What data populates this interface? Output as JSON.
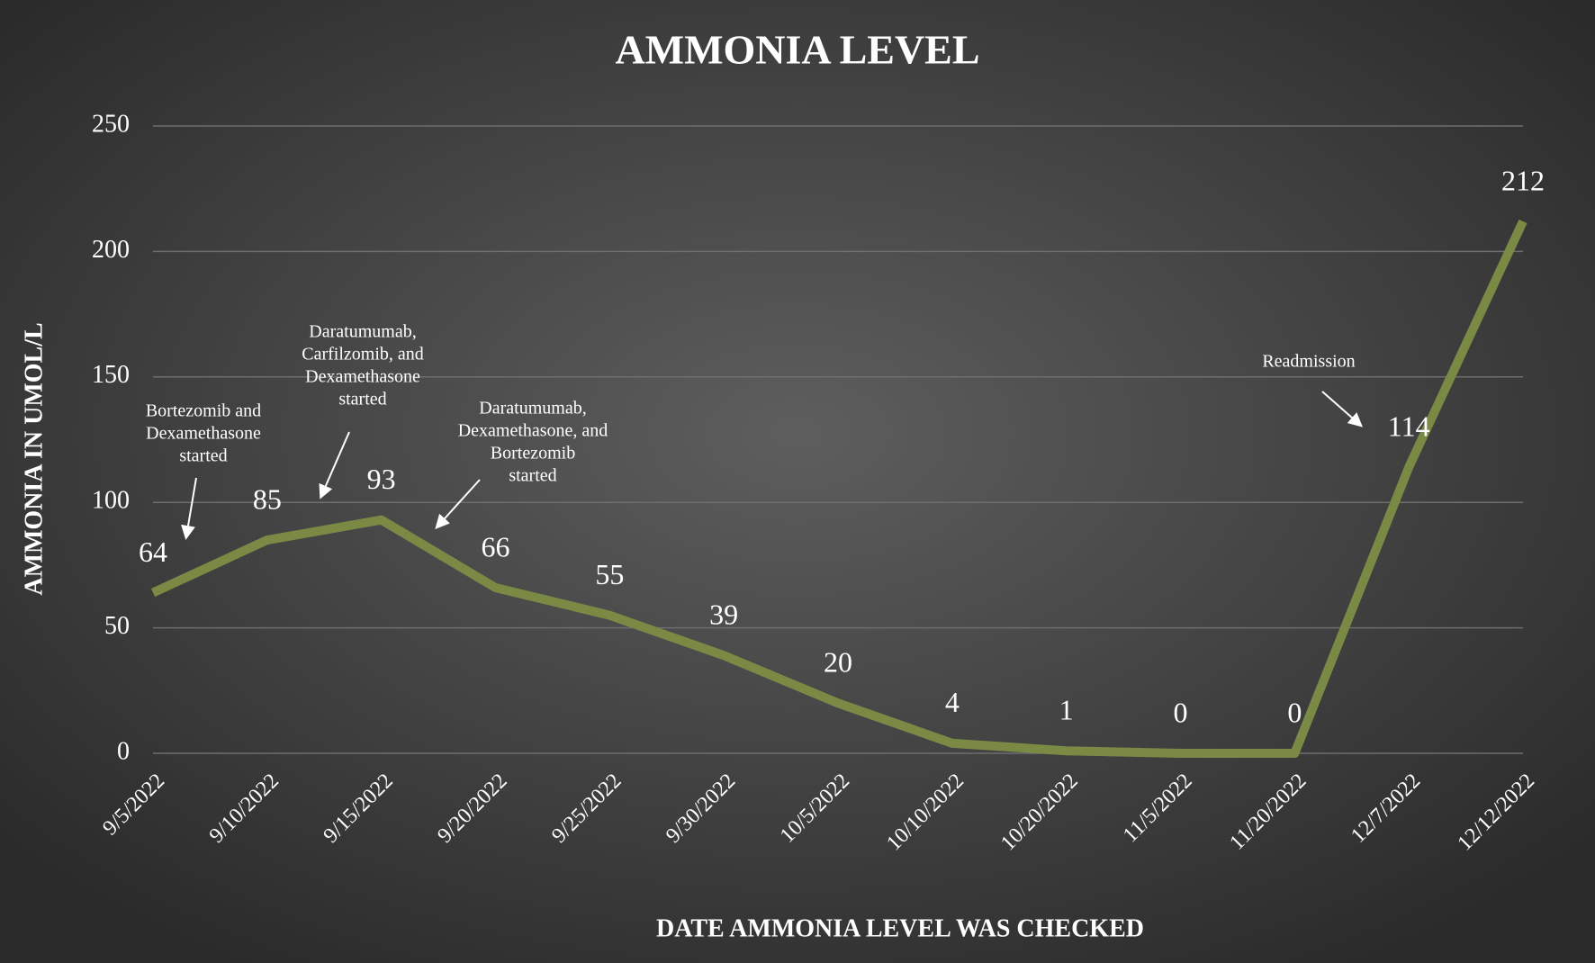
{
  "chart_data": {
    "type": "line",
    "title": "AMMONIA LEVEL",
    "x_label": "DATE AMMONIA LEVEL WAS CHECKED",
    "y_label": "AMMONIA IN UMOL/L",
    "categories": [
      "9/5/2022",
      "9/10/2022",
      "9/15/2022",
      "9/20/2022",
      "9/25/2022",
      "9/30/2022",
      "10/5/2022",
      "10/10/2022",
      "10/20/2022",
      "11/5/2022",
      "11/20/2022",
      "12/7/2022",
      "12/12/2022"
    ],
    "values": [
      64,
      85,
      93,
      66,
      55,
      39,
      20,
      4,
      1,
      0,
      0,
      114,
      212
    ],
    "color": "#7a8a45",
    "ylim": [
      0,
      250
    ],
    "yticks": [
      0,
      50,
      100,
      150,
      200,
      250
    ],
    "grid": true,
    "annotations": [
      [
        "Bortezomib and",
        "Dexamethasone",
        "started"
      ],
      [
        "Daratumumab,",
        "Carfilzomib, and",
        "Dexamethasone",
        "started"
      ],
      [
        "Daratumumab,",
        "Dexamethasone, and",
        "Bortezomib",
        "started"
      ],
      [
        "Readmission"
      ]
    ]
  }
}
